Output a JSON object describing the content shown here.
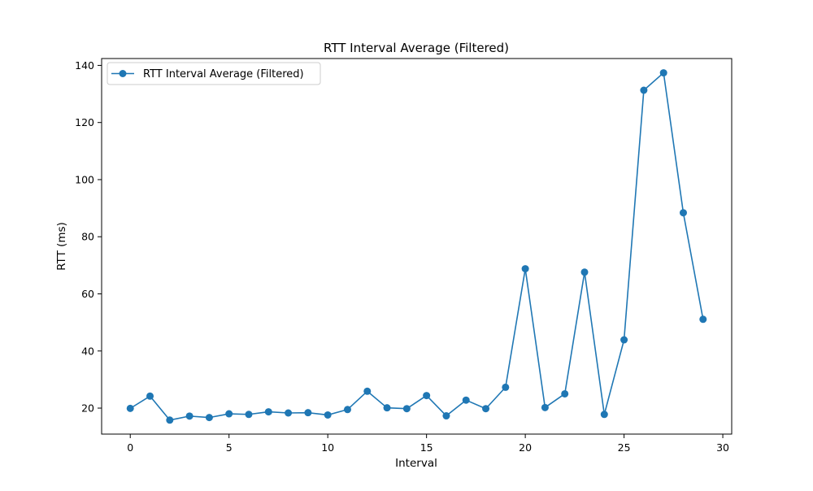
{
  "chart_data": {
    "type": "line",
    "title": "RTT Interval Average (Filtered)",
    "xlabel": "Interval",
    "ylabel": "RTT (ms)",
    "xlim": [
      -1.45,
      30.45
    ],
    "ylim": [
      10.9,
      142.4
    ],
    "xticks": [
      0,
      5,
      10,
      15,
      20,
      25,
      30
    ],
    "yticks": [
      20,
      40,
      60,
      80,
      100,
      120,
      140
    ],
    "grid": false,
    "legend_position": "upper left",
    "series": [
      {
        "name": "RTT Interval Average (Filtered)",
        "color": "#1f77b4",
        "marker": "circle",
        "x": [
          0,
          1,
          2,
          3,
          4,
          5,
          6,
          7,
          8,
          9,
          10,
          11,
          12,
          13,
          14,
          15,
          16,
          17,
          18,
          19,
          20,
          21,
          22,
          23,
          24,
          25,
          26,
          27,
          28,
          29
        ],
        "y": [
          19.9,
          24.2,
          15.8,
          17.2,
          16.7,
          18.0,
          17.8,
          18.7,
          18.3,
          18.4,
          17.6,
          19.5,
          25.9,
          20.1,
          19.8,
          24.4,
          17.3,
          22.8,
          19.8,
          27.3,
          68.8,
          20.2,
          25.0,
          67.6,
          17.8,
          43.9,
          131.3,
          137.4,
          88.4,
          51.1
        ]
      }
    ]
  }
}
